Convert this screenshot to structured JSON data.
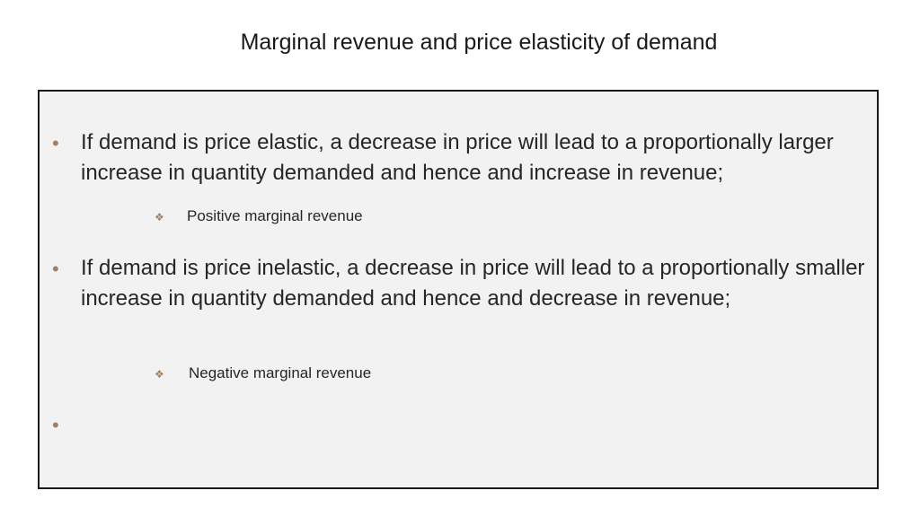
{
  "slide": {
    "title": "Marginal revenue and price elasticity of demand",
    "bullets": [
      {
        "text": "If demand is price elastic, a decrease in price will lead to a proportionally larger increase in quantity demanded and hence and increase in revenue;",
        "sub": "Positive marginal revenue"
      },
      {
        "text": "If demand is price inelastic, a decrease in price will lead to a proportionally smaller increase in quantity demanded and hence and decrease in revenue;",
        "sub": "Negative marginal revenue"
      },
      {
        "text": ""
      }
    ],
    "colors": {
      "bullet": "#a5805f",
      "box_fill": "#f2f2f2",
      "box_border": "#1a1a1a"
    }
  }
}
